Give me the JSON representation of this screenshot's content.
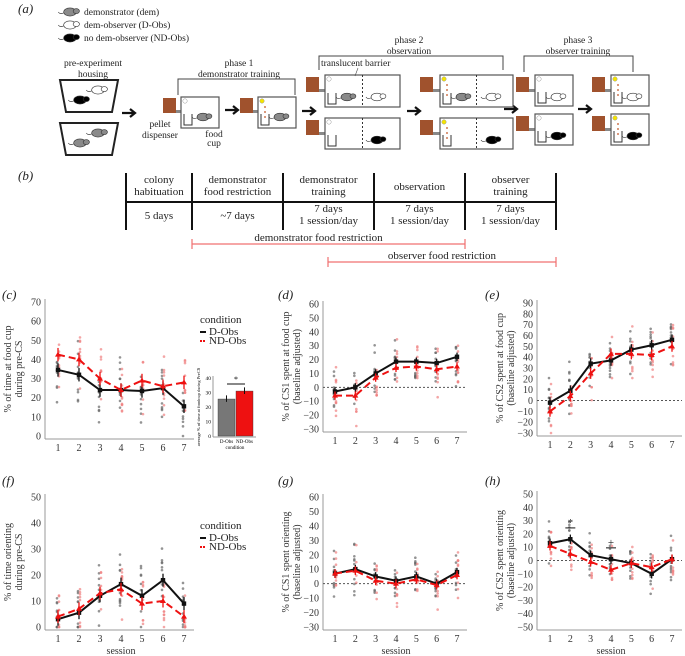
{
  "panel_a": {
    "label": "(a)",
    "legend": [
      {
        "text": "demonstrator (dem)",
        "color": "#8a8a8a"
      },
      {
        "text": "dem-observer (D-Obs)",
        "color": "#ffffff"
      },
      {
        "text": "no dem-observer (ND-Obs)",
        "color": "#000000"
      }
    ],
    "pre_housing": [
      "pre-experiment",
      "housing"
    ],
    "phase1": [
      "phase 1",
      "demonstrator training"
    ],
    "phase2": [
      "phase 2",
      "observation"
    ],
    "phase3": [
      "phase 3",
      "observer training"
    ],
    "barrier": "translucent barrier",
    "dispenser": [
      "pellet",
      "dispenser"
    ],
    "cup": [
      "food",
      "cup"
    ],
    "dispenser_color": "#a0522d",
    "light_color": "#f5e400"
  },
  "panel_b": {
    "label": "(b)",
    "columns": [
      {
        "head": [
          "colony",
          "habituation"
        ],
        "body": [
          "5 days"
        ]
      },
      {
        "head": [
          "demonstrator",
          "food restriction"
        ],
        "body": [
          "~7 days"
        ]
      },
      {
        "head": [
          "demonstrator",
          "training"
        ],
        "body": [
          "7 days",
          "1 session/day"
        ]
      },
      {
        "head": [
          "observation"
        ],
        "body": [
          "7 days",
          "1 session/day"
        ]
      },
      {
        "head": [
          "observer",
          "training"
        ],
        "body": [
          "7 days",
          "1 session/day"
        ]
      }
    ],
    "restrictions": [
      "demonstrator food restriction",
      "observer food restriction"
    ],
    "restriction_color": "#f07070"
  },
  "chart_data": [
    {
      "id": "c",
      "label": "(c)",
      "type": "line",
      "ylabel": [
        "% of time at food cup",
        "during pre-CS"
      ],
      "xlabel": "",
      "ylim": [
        0,
        70
      ],
      "ystep": 10,
      "zero_line": false,
      "x": [
        1,
        2,
        3,
        4,
        5,
        6,
        7
      ],
      "series": [
        {
          "name": "D-Obs",
          "values": [
            34.5,
            32,
            24,
            24,
            23.5,
            25,
            15.5
          ],
          "color": "#111111"
        },
        {
          "name": "ND-Obs",
          "values": [
            42.5,
            40,
            30,
            24,
            29,
            26,
            28
          ],
          "color": "#ee1111"
        }
      ],
      "sem": 3.5,
      "spread": 20,
      "legend": {
        "title": "condition",
        "items": [
          "D-Obs",
          "ND-Obs"
        ]
      },
      "inset": {
        "type": "bar",
        "categories": [
          "D-Obs",
          "ND-Obs"
        ],
        "values": [
          25.5,
          31
        ],
        "colors": [
          "#777777",
          "#ee1111"
        ],
        "ylim": [
          0,
          40
        ],
        "ylabel": "average % of time at foodcup during PreCS",
        "xlabel": "condition",
        "sig": "*"
      }
    },
    {
      "id": "d",
      "label": "(d)",
      "type": "line",
      "ylabel": [
        "% of CS1 spent at food cup",
        "(baseline adjusted)"
      ],
      "xlabel": "",
      "ylim": [
        -30,
        60
      ],
      "ystep": 10,
      "zero_line": true,
      "x": [
        1,
        2,
        3,
        4,
        5,
        6,
        7
      ],
      "series": [
        {
          "name": "D-Obs",
          "values": [
            -3,
            0,
            10,
            18.5,
            18.5,
            17.5,
            22
          ],
          "color": "#111111"
        },
        {
          "name": "ND-Obs",
          "values": [
            -6,
            -6,
            7,
            14,
            15,
            13,
            15
          ],
          "color": "#ee1111"
        }
      ],
      "sem": 3,
      "spread": 22
    },
    {
      "id": "e",
      "label": "(e)",
      "type": "line",
      "ylabel": [
        "% of CS2 spent at food cup",
        "(baseline adjusted)"
      ],
      "xlabel": "",
      "ylim": [
        -30,
        90
      ],
      "ystep": 10,
      "zero_line": true,
      "x": [
        1,
        2,
        3,
        4,
        5,
        6,
        7
      ],
      "series": [
        {
          "name": "D-Obs",
          "values": [
            -2,
            9,
            34,
            37,
            47,
            51,
            56
          ],
          "color": "#111111"
        },
        {
          "name": "ND-Obs",
          "values": [
            -10,
            4,
            25,
            43,
            43,
            42,
            50
          ],
          "color": "#ee1111"
        }
      ],
      "sem": 5,
      "spread": 28
    },
    {
      "id": "f",
      "label": "(f)",
      "type": "line",
      "ylabel": [
        "% of time orienting",
        "during pre-CS"
      ],
      "xlabel": "session",
      "ylim": [
        0,
        50
      ],
      "ystep": 10,
      "zero_line": false,
      "x": [
        1,
        2,
        3,
        4,
        5,
        6,
        7
      ],
      "series": [
        {
          "name": "D-Obs",
          "values": [
            3,
            5.5,
            12,
            16.5,
            12,
            18,
            9
          ],
          "color": "#111111"
        },
        {
          "name": "ND-Obs",
          "values": [
            4,
            7,
            13,
            14.5,
            9,
            10,
            4
          ],
          "color": "#ee1111"
        }
      ],
      "sem": 2.5,
      "spread": 14,
      "legend": {
        "title": "condition",
        "items": [
          "D-Obs",
          "ND-Obs"
        ]
      }
    },
    {
      "id": "g",
      "label": "(g)",
      "type": "line",
      "ylabel": [
        "% of CS1 spent orienting",
        "(baseline adjusted)"
      ],
      "xlabel": "session",
      "ylim": [
        -30,
        60
      ],
      "ystep": 10,
      "zero_line": true,
      "x": [
        1,
        2,
        3,
        4,
        5,
        6,
        7
      ],
      "series": [
        {
          "name": "D-Obs",
          "values": [
            7,
            10,
            5,
            2,
            5,
            0,
            8
          ],
          "color": "#111111"
        },
        {
          "name": "ND-Obs",
          "values": [
            7,
            9,
            2,
            0,
            3,
            -1,
            6
          ],
          "color": "#ee1111"
        }
      ],
      "sem": 3,
      "spread": 18
    },
    {
      "id": "h",
      "label": "(h)",
      "type": "line",
      "ylabel": [
        "% of CS2 spent orienting",
        "(baseline adjusted)"
      ],
      "xlabel": "session",
      "ylim": [
        -50,
        50
      ],
      "ystep": 10,
      "zero_line": true,
      "x": [
        1,
        2,
        3,
        4,
        5,
        6,
        7
      ],
      "series": [
        {
          "name": "D-Obs",
          "values": [
            13,
            16,
            4,
            1,
            -2,
            -10,
            1
          ],
          "color": "#111111"
        },
        {
          "name": "ND-Obs",
          "values": [
            11,
            5,
            -1,
            -7,
            -2,
            -5,
            1
          ],
          "color": "#ee1111"
        }
      ],
      "sem": 3.5,
      "spread": 20,
      "annotations": [
        {
          "x": 2,
          "text": "*"
        },
        {
          "x": 4,
          "text": "+"
        }
      ]
    }
  ]
}
